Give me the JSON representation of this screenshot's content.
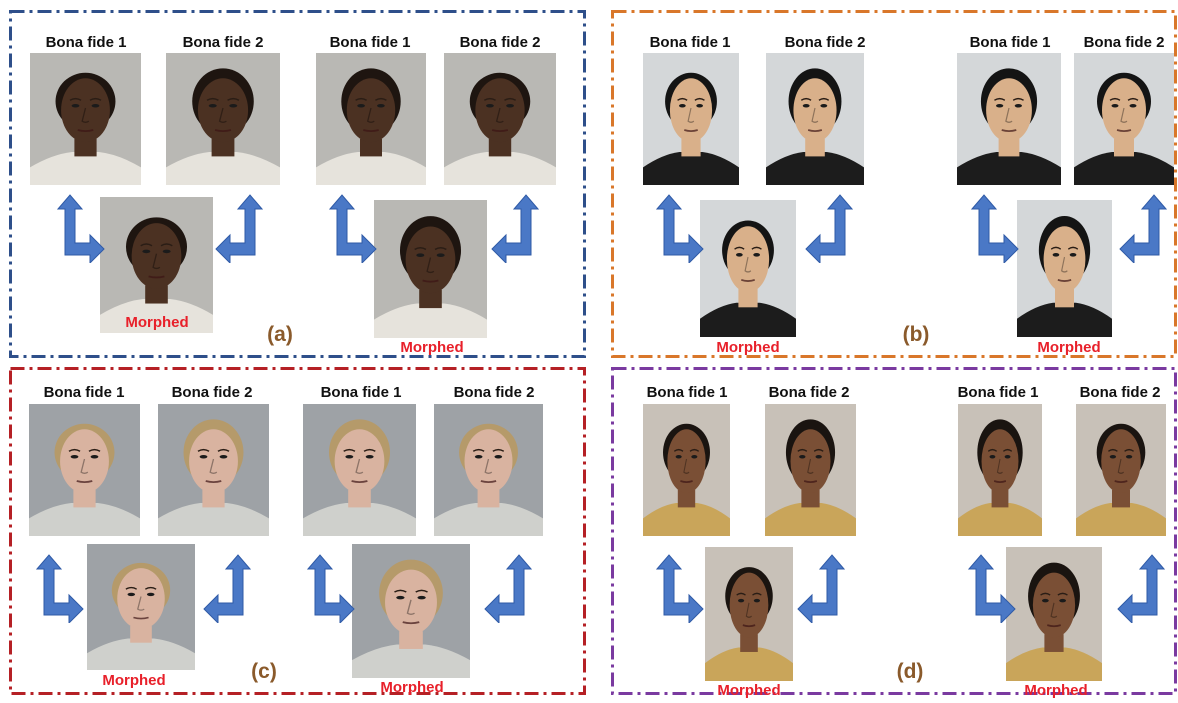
{
  "labels": {
    "bona_fide_1": "Bona fide 1",
    "bona_fide_2": "Bona fide 2",
    "morphed": "Morphed"
  },
  "panels": [
    {
      "tag": "(a)",
      "frame_color": "#2e4f8a"
    },
    {
      "tag": "(b)",
      "frame_color": "#d9772a"
    },
    {
      "tag": "(c)",
      "frame_color": "#b52025"
    },
    {
      "tag": "(d)",
      "frame_color": "#7a3aa0"
    }
  ],
  "colors": {
    "morphed_text": "#e8202a",
    "tag_text": "#8a5a2b",
    "arrow_fill": "#4a78c6",
    "arrow_stroke": "#2f5aa6"
  }
}
